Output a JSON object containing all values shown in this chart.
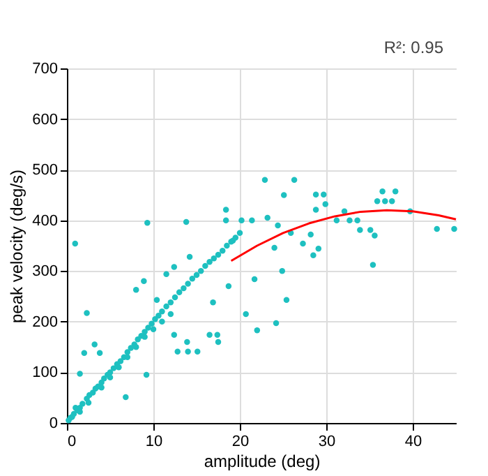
{
  "chart_data": {
    "type": "scatter",
    "xlabel": "amplitude (deg)",
    "ylabel": "peak velocity (deg/s)",
    "annotations": [
      "R²: 0.95"
    ],
    "xlim": [
      0,
      45
    ],
    "ylim": [
      0,
      700
    ],
    "xticks": [
      0,
      10,
      20,
      30,
      40
    ],
    "yticks": [
      0,
      100,
      200,
      300,
      400,
      500,
      600,
      700
    ],
    "grid": true,
    "series": [
      {
        "marker": "circle",
        "color": "#1ec0c0",
        "x": [
          0.2,
          0.4,
          0.6,
          0.8,
          1.2,
          1.5,
          1.8,
          2.3,
          2.6,
          3.0,
          3.3,
          3.6,
          4.0,
          4.3,
          4.7,
          5.0,
          5.4,
          5.8,
          6.2,
          6.6,
          7.0,
          7.4,
          7.8,
          8.2,
          8.6,
          9.0,
          9.4,
          9.8,
          10.2,
          10.6,
          11.0,
          11.5,
          12.0,
          12.5,
          13.0,
          13.5,
          14.0,
          14.5,
          15.0,
          15.5,
          16.0,
          16.5,
          17.0,
          17.5,
          18.0,
          18.5,
          19.0,
          19.5,
          20.0,
          1.0,
          1.5,
          2.5,
          4.0,
          5.0,
          6.0,
          7.0,
          8.0,
          9.0,
          10.0,
          11.0,
          12.0,
          0.95,
          9.3,
          13.8,
          18.4,
          22.9,
          26.3,
          25.1,
          28.8,
          29.7,
          28.8,
          29.9,
          32.1,
          31.2,
          32.7,
          33.6,
          33.9,
          35.1,
          35.6,
          36.5,
          38.0,
          35.9,
          36.8,
          37.6,
          39.7,
          42.8,
          44.8,
          35.4,
          24.0,
          28.5,
          27.3,
          28.2,
          19.2,
          18.4,
          20.2,
          21.4,
          23.2,
          24.4,
          25.9,
          2.3,
          25.4,
          24.9,
          24.2,
          22.0,
          20.7,
          17.5,
          16.5,
          17.4,
          14.0,
          15.1,
          12.8,
          13.9,
          12.4,
          9.2,
          6.8,
          2.0,
          3.8,
          3.2,
          1.5,
          11.5,
          12.4,
          14.2,
          10.4,
          8.0,
          8.9,
          16.9,
          18.7,
          21.7,
          29.1
        ],
        "values": [
          5,
          10,
          12,
          18,
          25,
          30,
          38,
          48,
          55,
          60,
          68,
          72,
          80,
          88,
          95,
          100,
          108,
          116,
          122,
          130,
          140,
          148,
          155,
          165,
          172,
          180,
          188,
          196,
          205,
          212,
          220,
          230,
          238,
          248,
          258,
          266,
          275,
          285,
          292,
          300,
          310,
          318,
          325,
          332,
          340,
          350,
          358,
          366,
          375,
          30,
          22,
          40,
          70,
          90,
          110,
          130,
          150,
          170,
          185,
          200,
          215,
          354,
          395,
          397,
          421,
          480,
          480,
          450,
          451,
          451,
          421,
          432,
          418,
          400,
          400,
          400,
          381,
          381,
          370,
          457,
          457,
          438,
          438,
          438,
          418,
          383,
          383,
          312,
          346,
          331,
          354,
          372,
          360,
          400,
          400,
          400,
          405,
          390,
          375,
          217,
          243,
          300,
          197,
          183,
          215,
          160,
          174,
          174,
          141,
          141,
          141,
          160,
          174,
          95,
          51,
          138,
          138,
          155,
          97,
          294,
          308,
          328,
          243,
          263,
          280,
          238,
          270,
          284,
          344
        ]
      },
      {
        "type": "line",
        "color": "#ff0000",
        "x": [
          19,
          22,
          25,
          28,
          31,
          34,
          37,
          40,
          43,
          45
        ],
        "values": [
          320,
          350,
          375,
          394,
          408,
          417,
          420,
          418,
          410,
          402
        ]
      }
    ]
  }
}
